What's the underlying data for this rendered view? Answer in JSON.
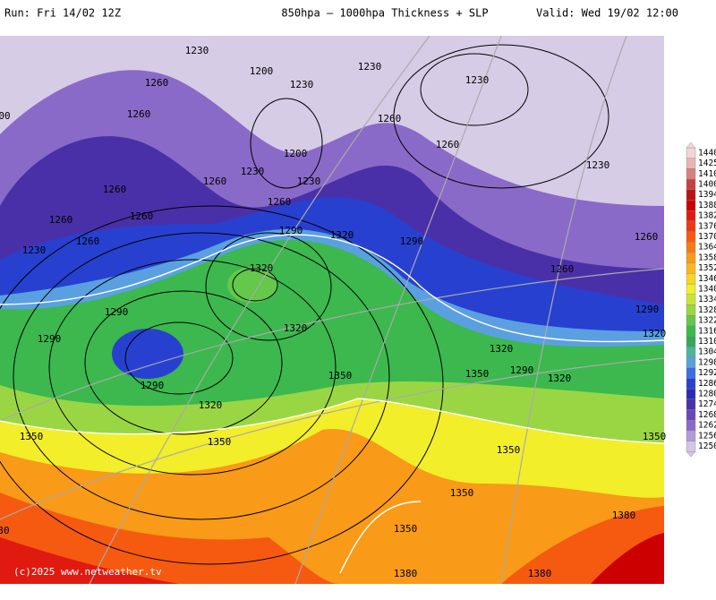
{
  "header": {
    "run": "Run: Fri 14/02 12Z",
    "title": "850hpa – 1000hpa Thickness + SLP",
    "valid": "Valid: Wed 19/02 12:00"
  },
  "footer": {
    "copyright": "(c)2025 www.netweather.tv"
  },
  "colorbar": {
    "levels": [
      1440,
      1425,
      1410,
      1400,
      1394,
      1388,
      1382,
      1376,
      1370,
      1364,
      1358,
      1352,
      1346,
      1340,
      1334,
      1328,
      1322,
      1316,
      1310,
      1304,
      1298,
      1292,
      1286,
      1280,
      1274,
      1268,
      1262,
      1256,
      1250
    ],
    "colors": [
      "#f2d6d6",
      "#e8b4b4",
      "#d98080",
      "#c84040",
      "#b81414",
      "#cc0000",
      "#e01a10",
      "#ee3a10",
      "#f55a10",
      "#f77a14",
      "#f99a18",
      "#fbb81c",
      "#f6d620",
      "#f2ee2a",
      "#c8e438",
      "#9ad644",
      "#64c84a",
      "#3cb84e",
      "#36a858",
      "#4cb4a0",
      "#5aa0e0",
      "#3c70e0",
      "#2840d0",
      "#2a2cb0",
      "#4a30a8",
      "#6a48b8",
      "#8a6ac8",
      "#b09ad8",
      "#d2c6e4"
    ]
  },
  "contour_labels": [
    "1230",
    "1200",
    "1230",
    "1230",
    "1230",
    "1260",
    "1260",
    "1260",
    "00",
    "1260",
    "1200",
    "1230",
    "1230",
    "1230",
    "1260",
    "1260",
    "1260",
    "1260",
    "1260",
    "1260",
    "1230",
    "1290",
    "1320",
    "1290",
    "1260",
    "1320",
    "1260",
    "1290",
    "1320",
    "1290",
    "1290",
    "1320",
    "1320",
    "1350",
    "1350",
    "1290",
    "1320",
    "1290",
    "1320",
    "1350",
    "1350",
    "1350",
    "1350",
    "1350",
    "1380",
    "1350",
    "1380",
    "1380",
    "30"
  ]
}
